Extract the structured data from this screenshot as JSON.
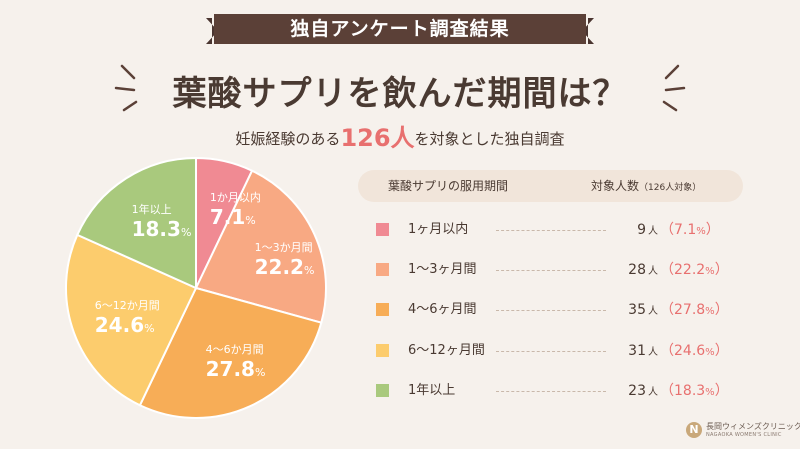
{
  "ribbon": {
    "text": "独自アンケート調査結果"
  },
  "headline": {
    "text": "葉酸サプリを飲んだ期間は？"
  },
  "subline": {
    "before": "妊娠経験のある",
    "highlight": "126人",
    "after": "を対象とした独自調査"
  },
  "table": {
    "header_left": "葉酸サプリの服用期間",
    "header_right": "対象人数",
    "header_right_small": "（126人対象）",
    "unit": "人",
    "pct_unit": "%"
  },
  "chart_data": {
    "type": "pie",
    "total": 126,
    "slices": [
      {
        "label": "1か月以内",
        "table_label": "1ヶ月以内",
        "count": 9,
        "value": 7.1,
        "color": "#f08a93"
      },
      {
        "label": "1～3か月間",
        "table_label": "1～3ヶ月間",
        "count": 28,
        "value": 22.2,
        "color": "#f8a983"
      },
      {
        "label": "4～6か月間",
        "table_label": "4～6ヶ月間",
        "count": 35,
        "value": 27.8,
        "color": "#f7ad57"
      },
      {
        "label": "6～12か月間",
        "table_label": "6～12ヶ月間",
        "count": 31,
        "value": 24.6,
        "color": "#fccc6d"
      },
      {
        "label": "1年以上",
        "table_label": "1年以上",
        "count": 23,
        "value": 18.3,
        "color": "#a9c97d"
      }
    ]
  },
  "logo": {
    "mark": "N",
    "name": "長岡ウィメンズクリニック",
    "sub": "NAGAOKA WOMEN'S CLINIC"
  }
}
